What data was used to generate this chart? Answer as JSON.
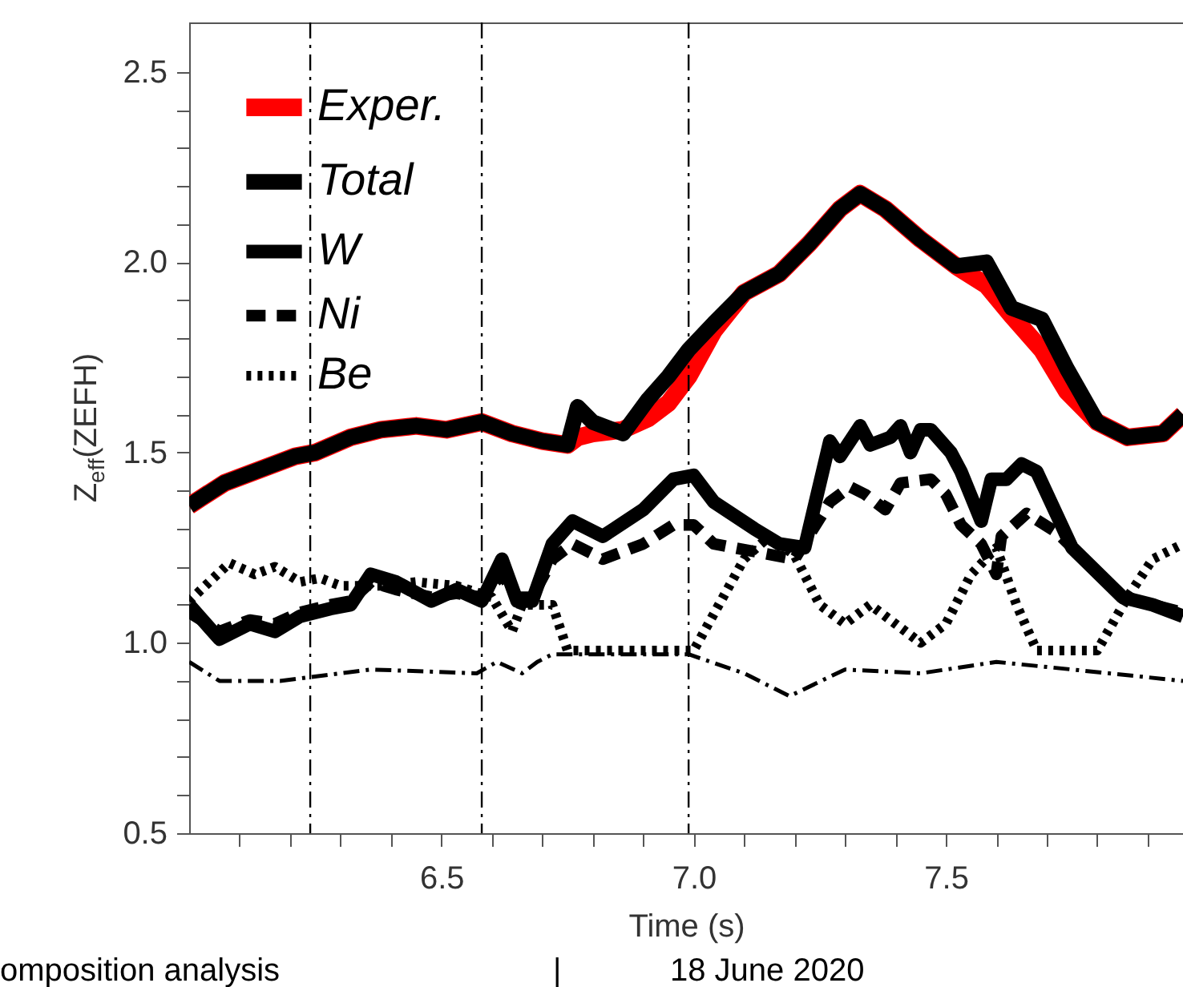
{
  "chart_data": {
    "type": "line",
    "xlabel": "Time (s)",
    "ylabel": "Z$_{eff}$(ZEFH)",
    "annotations": [
      "omposition analysis",
      "|",
      "18 June 2020"
    ],
    "xlim": [
      6.0,
      7.97
    ],
    "ylim": [
      0.5,
      2.63
    ],
    "xticks": [
      {
        "value": 6.1,
        "label": null
      },
      {
        "value": 6.2,
        "label": null
      },
      {
        "value": 6.3,
        "label": null
      },
      {
        "value": 6.4,
        "label": null
      },
      6.5,
      {
        "value": 6.6,
        "label": null
      },
      {
        "value": 6.7,
        "label": null
      },
      {
        "value": 6.8,
        "label": null
      },
      {
        "value": 6.9,
        "label": null
      },
      {
        "value": 7.0,
        "label": "7.0"
      },
      {
        "value": 7.1,
        "label": null
      },
      {
        "value": 7.2,
        "label": null
      },
      {
        "value": 7.3,
        "label": null
      },
      {
        "value": 7.4,
        "label": null
      },
      7.5,
      {
        "value": 7.6,
        "label": null
      },
      {
        "value": 7.7,
        "label": null
      },
      {
        "value": 7.8,
        "label": null
      },
      {
        "value": 7.9,
        "label": null
      }
    ],
    "yticks": [
      0.5,
      {
        "value": 0.6,
        "label": null
      },
      {
        "value": 0.7,
        "label": null
      },
      {
        "value": 0.8,
        "label": null
      },
      {
        "value": 0.9,
        "label": null
      },
      {
        "value": 1.0,
        "label": "1.0"
      },
      {
        "value": 1.1,
        "label": null
      },
      {
        "value": 1.2,
        "label": null
      },
      {
        "value": 1.3,
        "label": null
      },
      {
        "value": 1.4,
        "label": null
      },
      1.5,
      {
        "value": 1.6,
        "label": null
      },
      {
        "value": 1.7,
        "label": null
      },
      {
        "value": 1.8,
        "label": null
      },
      {
        "value": 1.9,
        "label": null
      },
      {
        "value": 2.0,
        "label": "2.0"
      },
      {
        "value": 2.1,
        "label": null
      },
      {
        "value": 2.2,
        "label": null
      },
      {
        "value": 2.3,
        "label": null
      },
      {
        "value": 2.4,
        "label": null
      },
      2.5
    ],
    "grid": false,
    "legend": "top left",
    "marker": "none",
    "ref_lines": [
      {
        "axis": "x",
        "value": 6.24,
        "color": "#000000",
        "line_style": "dashdot"
      },
      {
        "axis": "x",
        "value": 6.58,
        "color": "#000000",
        "line_style": "dashdot"
      },
      {
        "axis": "x",
        "value": 6.99,
        "color": "#000000",
        "line_style": "dashdot"
      }
    ],
    "x": [
      6.0,
      6.07,
      6.15,
      6.21,
      6.25,
      6.32,
      6.38,
      6.45,
      6.51,
      6.58,
      6.64,
      6.7,
      6.75,
      6.77,
      6.8,
      6.86,
      6.91,
      6.95,
      6.99,
      7.04,
      7.1,
      7.17,
      7.23,
      7.29,
      7.33,
      7.38,
      7.45,
      7.52,
      7.58,
      7.63,
      7.69,
      7.74,
      7.8,
      7.86,
      7.93,
      7.97
    ],
    "series": [
      {
        "name": "Exper.",
        "color": "#ff0000",
        "line_style": "solid",
        "values": [
          1.36,
          1.42,
          1.46,
          1.49,
          1.5,
          1.54,
          1.56,
          1.57,
          1.56,
          1.58,
          1.55,
          1.53,
          1.52,
          1.54,
          1.55,
          1.56,
          1.59,
          1.63,
          1.7,
          1.82,
          1.92,
          1.97,
          2.05,
          2.14,
          2.18,
          2.14,
          2.06,
          1.99,
          1.94,
          1.86,
          1.77,
          1.66,
          1.58,
          1.54,
          1.55,
          1.6
        ]
      },
      {
        "name": "Total",
        "color": "#000000",
        "line_style": "solid",
        "values": [
          1.36,
          1.42,
          1.46,
          1.49,
          1.5,
          1.54,
          1.56,
          1.57,
          1.56,
          1.58,
          1.55,
          1.53,
          1.52,
          1.62,
          1.58,
          1.55,
          1.64,
          1.7,
          1.77,
          1.84,
          1.92,
          1.97,
          2.05,
          2.14,
          2.18,
          2.14,
          2.06,
          1.99,
          2.0,
          1.88,
          1.85,
          1.72,
          1.58,
          1.54,
          1.55,
          1.6
        ]
      },
      {
        "name": "W",
        "color": "#000000",
        "line_style": "solid",
        "x": [
          6.0,
          6.06,
          6.12,
          6.17,
          6.22,
          6.28,
          6.32,
          6.36,
          6.41,
          6.48,
          6.53,
          6.58,
          6.62,
          6.65,
          6.68,
          6.72,
          6.76,
          6.82,
          6.9,
          6.96,
          7.0,
          7.04,
          7.12,
          7.17,
          7.22,
          7.27,
          7.29,
          7.33,
          7.35,
          7.39,
          7.41,
          7.43,
          7.45,
          7.47,
          7.51,
          7.53,
          7.57,
          7.59,
          7.62,
          7.65,
          7.68,
          7.75,
          7.85,
          7.91,
          7.97
        ],
        "values": [
          1.1,
          1.01,
          1.05,
          1.03,
          1.07,
          1.09,
          1.1,
          1.18,
          1.16,
          1.11,
          1.14,
          1.11,
          1.22,
          1.11,
          1.11,
          1.26,
          1.32,
          1.28,
          1.35,
          1.43,
          1.44,
          1.37,
          1.3,
          1.26,
          1.25,
          1.53,
          1.49,
          1.57,
          1.52,
          1.54,
          1.57,
          1.5,
          1.56,
          1.56,
          1.5,
          1.45,
          1.32,
          1.43,
          1.43,
          1.47,
          1.45,
          1.25,
          1.12,
          1.1,
          1.07
        ]
      },
      {
        "name": "Ni",
        "color": "#000000",
        "line_style": "dashed",
        "x": [
          6.0,
          6.06,
          6.12,
          6.17,
          6.22,
          6.28,
          6.32,
          6.36,
          6.41,
          6.48,
          6.53,
          6.58,
          6.62,
          6.65,
          6.68,
          6.72,
          6.76,
          6.82,
          6.9,
          6.96,
          7.0,
          7.04,
          7.12,
          7.2,
          7.27,
          7.31,
          7.34,
          7.38,
          7.41,
          7.47,
          7.5,
          7.53,
          7.57,
          7.6,
          7.61,
          7.66,
          7.72,
          7.85,
          7.97
        ],
        "values": [
          1.08,
          1.03,
          1.06,
          1.05,
          1.08,
          1.1,
          1.11,
          1.16,
          1.14,
          1.12,
          1.13,
          1.12,
          1.18,
          1.12,
          1.12,
          1.22,
          1.26,
          1.22,
          1.26,
          1.31,
          1.31,
          1.26,
          1.24,
          1.22,
          1.37,
          1.41,
          1.39,
          1.35,
          1.42,
          1.43,
          1.39,
          1.31,
          1.26,
          1.18,
          1.28,
          1.34,
          1.29,
          1.12,
          1.08
        ]
      },
      {
        "name": "Be",
        "color": "#000000",
        "line_style": "dotted",
        "x": [
          6.0,
          6.08,
          6.13,
          6.17,
          6.22,
          6.26,
          6.3,
          6.38,
          6.45,
          6.53,
          6.6,
          6.64,
          6.66,
          6.72,
          6.75,
          7.0,
          7.05,
          7.1,
          7.15,
          7.2,
          7.25,
          7.3,
          7.35,
          7.4,
          7.45,
          7.5,
          7.55,
          7.6,
          7.64,
          7.68,
          7.8,
          7.86,
          7.91,
          7.97
        ],
        "values": [
          1.11,
          1.21,
          1.18,
          1.2,
          1.16,
          1.17,
          1.15,
          1.15,
          1.16,
          1.15,
          1.12,
          1.03,
          1.1,
          1.1,
          0.98,
          0.98,
          1.1,
          1.22,
          1.28,
          1.23,
          1.1,
          1.05,
          1.1,
          1.05,
          1.0,
          1.05,
          1.18,
          1.25,
          1.1,
          0.98,
          0.98,
          1.12,
          1.22,
          1.26
        ]
      },
      {
        "color": "#000000",
        "line_style": "dashdot",
        "x": [
          6.0,
          6.06,
          6.18,
          6.36,
          6.57,
          6.61,
          6.66,
          6.69,
          6.72,
          6.99,
          7.1,
          7.19,
          7.3,
          7.45,
          7.6,
          7.75,
          7.97
        ],
        "values": [
          0.95,
          0.9,
          0.9,
          0.93,
          0.92,
          0.95,
          0.92,
          0.95,
          0.97,
          0.97,
          0.92,
          0.86,
          0.93,
          0.92,
          0.95,
          0.93,
          0.9
        ]
      }
    ]
  }
}
